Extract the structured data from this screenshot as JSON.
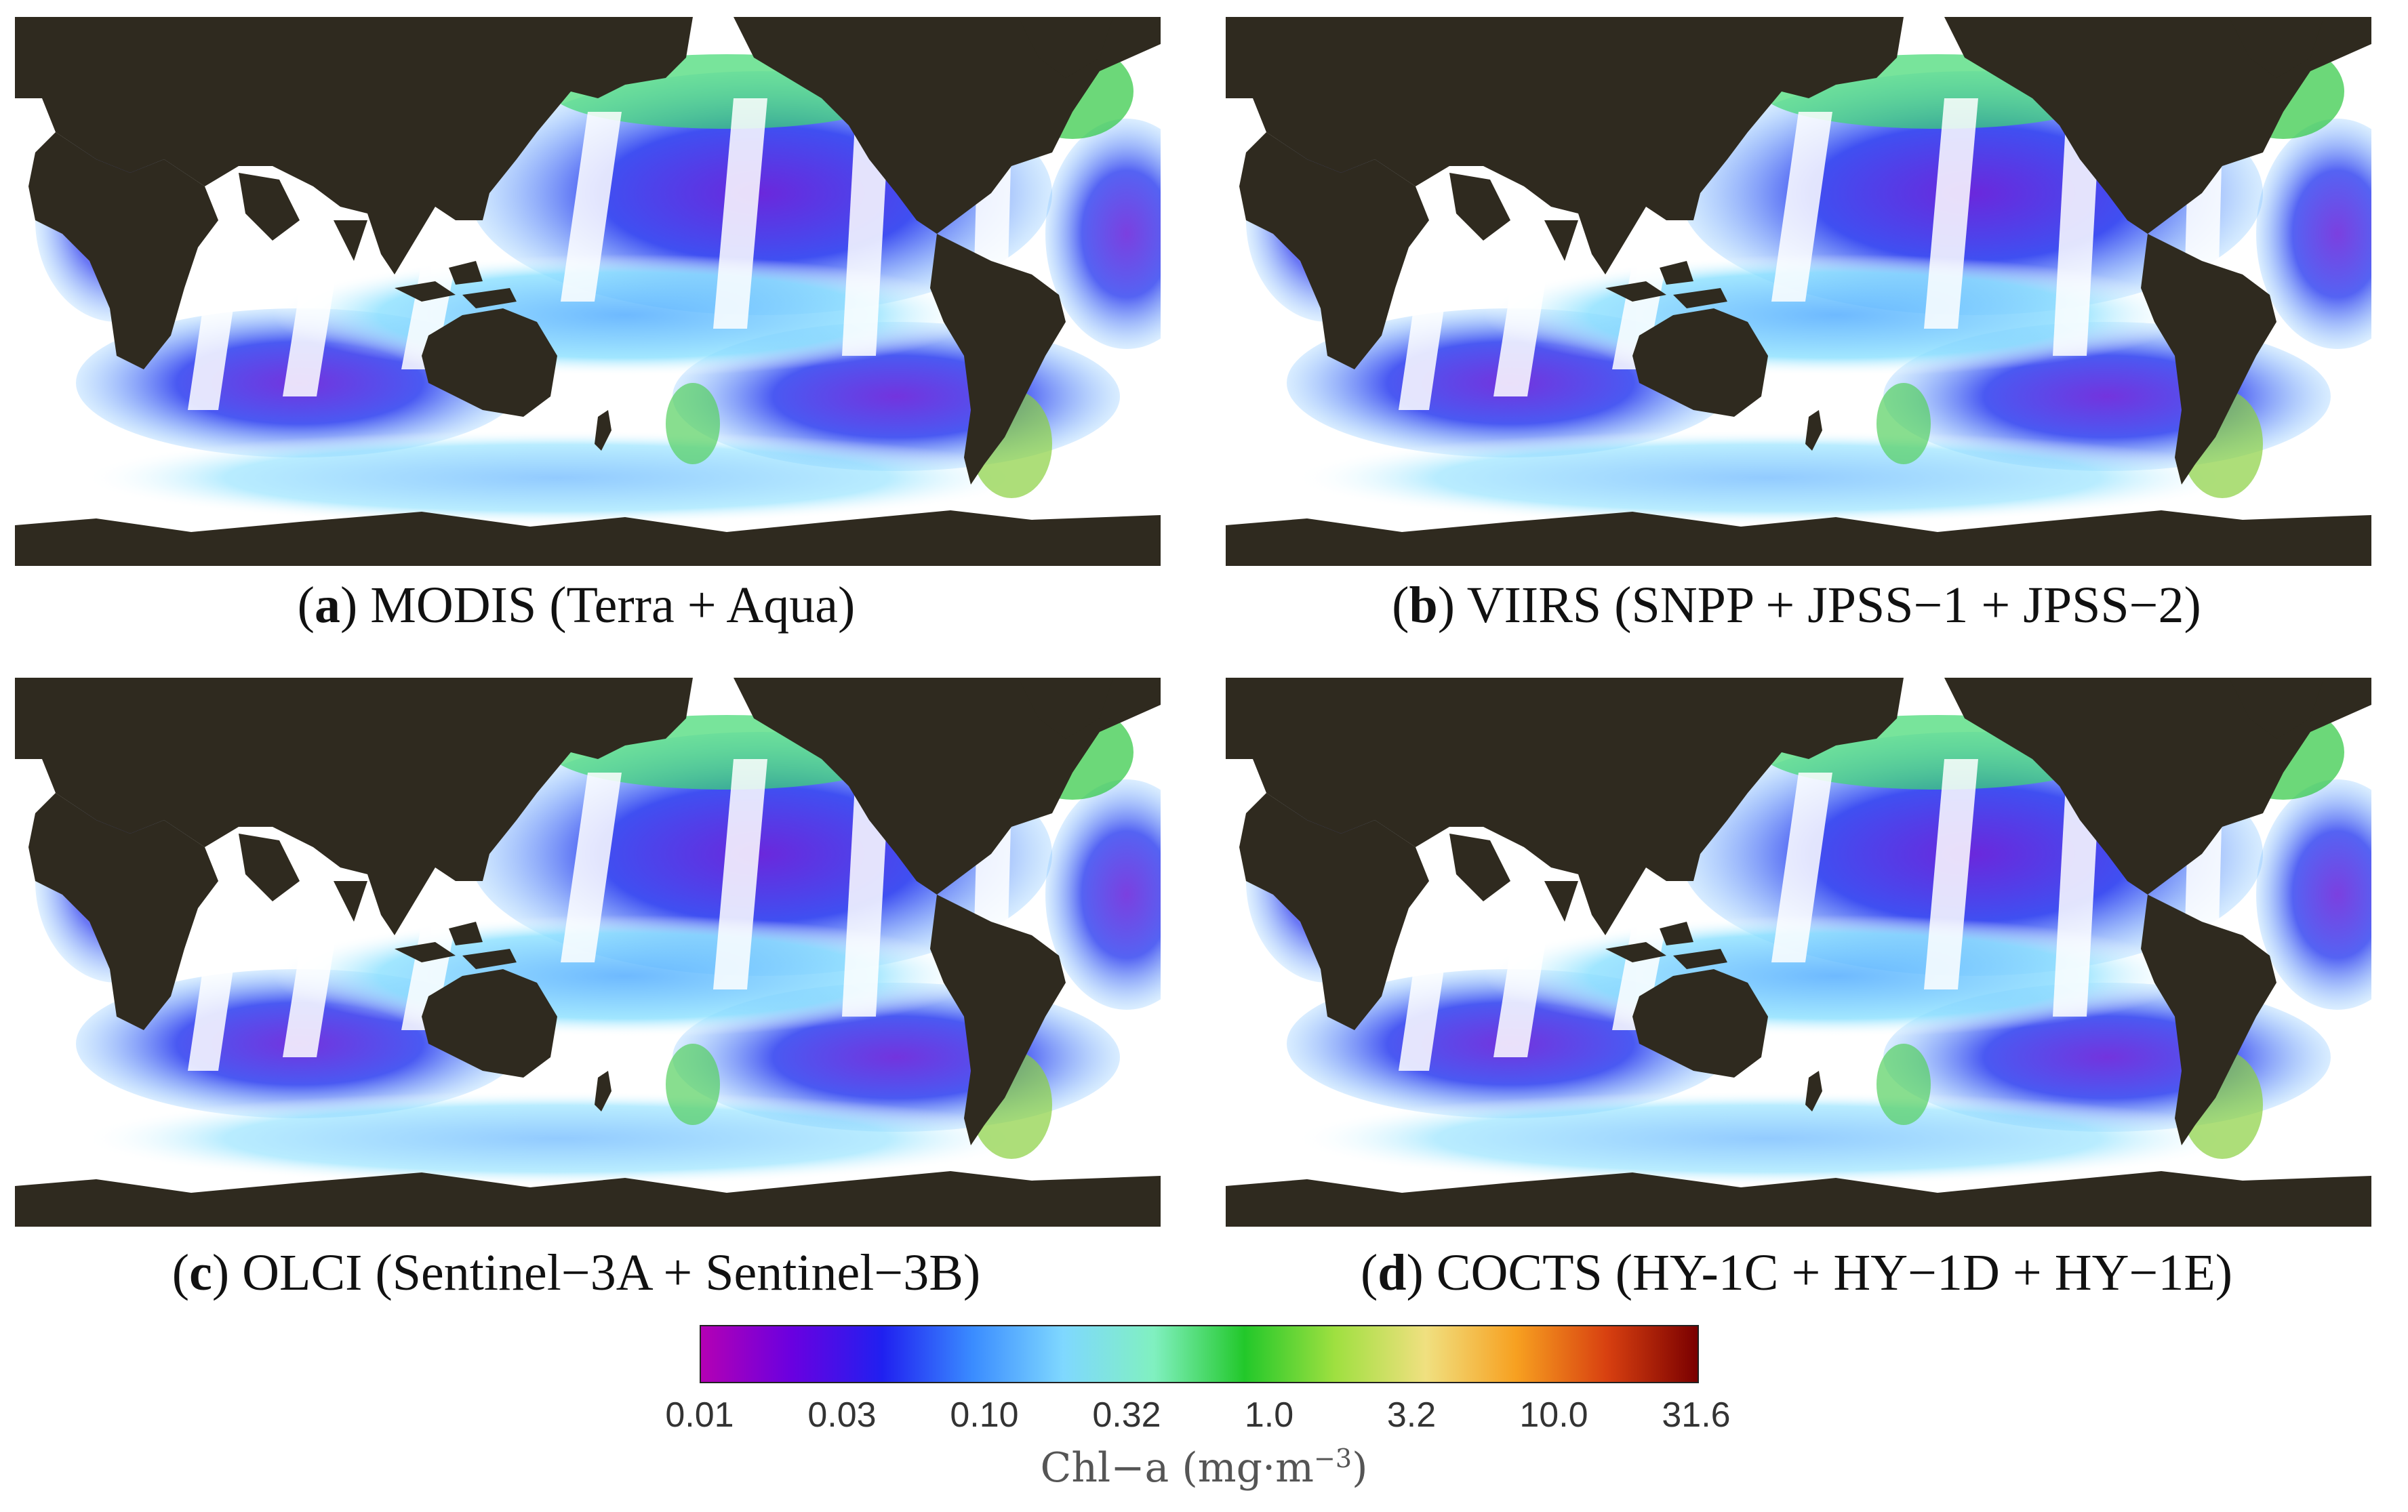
{
  "panels": [
    {
      "letter": "a",
      "caption": " MODIS (Terra + Aqua)"
    },
    {
      "letter": "b",
      "caption": " VIIRS (SNPP + JPSS−1 + JPSS−2)"
    },
    {
      "letter": "c",
      "caption": " OLCI (Sentinel−3A + Sentinel−3B)"
    },
    {
      "letter": "d",
      "caption": " COCTS (HY-1C + HY−1D + HY−1E)"
    }
  ],
  "colorbar": {
    "ticks": [
      "0.01",
      "0.03",
      "0.10",
      "0.32",
      "1.0",
      "3.2",
      "10.0",
      "31.6"
    ],
    "label": "Chl−a (mg·m",
    "label_sup": "−3",
    "label_end": ")",
    "colors": [
      "#b400b4",
      "#6a00e0",
      "#2020f0",
      "#3a8cff",
      "#7fd8ff",
      "#80f0c0",
      "#22c82a",
      "#9fe040",
      "#f0e080",
      "#f7a020",
      "#d84010",
      "#7a0000"
    ]
  },
  "colors": {
    "land": "#2f2a1f",
    "no_data": "#ffffff"
  }
}
